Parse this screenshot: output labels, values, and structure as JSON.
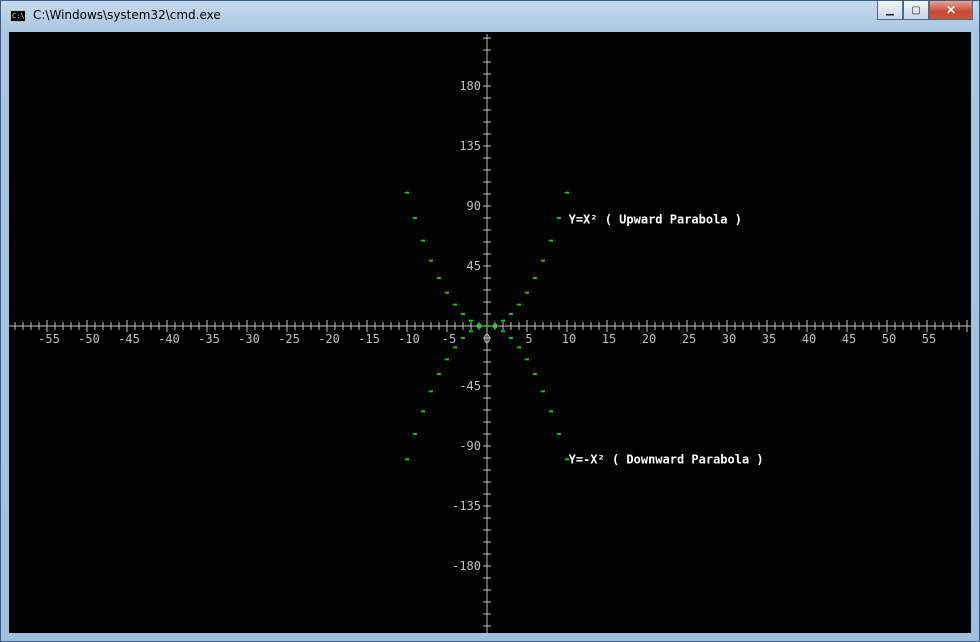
{
  "window": {
    "title": "C:\\Windows\\system32\\cmd.exe",
    "app_icon_text": "C:\\",
    "controls": {
      "minimize": "▁",
      "maximize": "▢",
      "close": "✕"
    }
  },
  "chart_data": {
    "type": "scatter",
    "xlim": [
      -60,
      60
    ],
    "ylim": [
      -225,
      225
    ],
    "x_ticks": [
      -55,
      -50,
      -45,
      -40,
      -35,
      -30,
      -25,
      -20,
      -15,
      -10,
      -5,
      0,
      5,
      10,
      15,
      20,
      25,
      30,
      35,
      40,
      45,
      50,
      55
    ],
    "y_ticks": [
      180,
      135,
      90,
      45,
      -45,
      -90,
      -135,
      -180
    ],
    "x_tick_labels": [
      "-55",
      "-50",
      "-45",
      "-40",
      "-35",
      "-30",
      "-25",
      "-20",
      "-15",
      "-10",
      "-5",
      "0",
      "5",
      "10",
      "15",
      "20",
      "25",
      "30",
      "35",
      "40",
      "45",
      "50",
      "55"
    ],
    "y_tick_labels": [
      "180",
      "135",
      "90",
      "45",
      "-45",
      "-90",
      "-135",
      "-180"
    ],
    "point_color": "#00d000",
    "axis_color": "#c0c0c0",
    "series": [
      {
        "x": [
          -10,
          -9,
          -8,
          -7,
          -6,
          -5,
          -4,
          -3,
          -2,
          -1,
          0,
          1,
          2,
          3,
          4,
          5,
          6,
          7,
          8,
          9,
          10
        ],
        "y": [
          100,
          81,
          64,
          49,
          36,
          25,
          16,
          9,
          4,
          1,
          0,
          1,
          4,
          9,
          16,
          25,
          36,
          49,
          64,
          81,
          100
        ]
      },
      {
        "x": [
          -10,
          -9,
          -8,
          -7,
          -6,
          -5,
          -4,
          -3,
          -2,
          -1,
          0,
          1,
          2,
          3,
          4,
          5,
          6,
          7,
          8,
          9,
          10
        ],
        "y": [
          -100,
          -81,
          -64,
          -49,
          -36,
          -25,
          -16,
          -9,
          -4,
          -1,
          0,
          -1,
          -4,
          -9,
          -16,
          -25,
          -36,
          -49,
          -64,
          -81,
          -100
        ]
      }
    ],
    "annotations": [
      {
        "text": "Y=X² ( Upward Parabola )",
        "x": 10.2,
        "y": 80
      },
      {
        "text": "Y=-X² ( Downward Parabola )",
        "x": 10.2,
        "y": -100
      }
    ]
  }
}
